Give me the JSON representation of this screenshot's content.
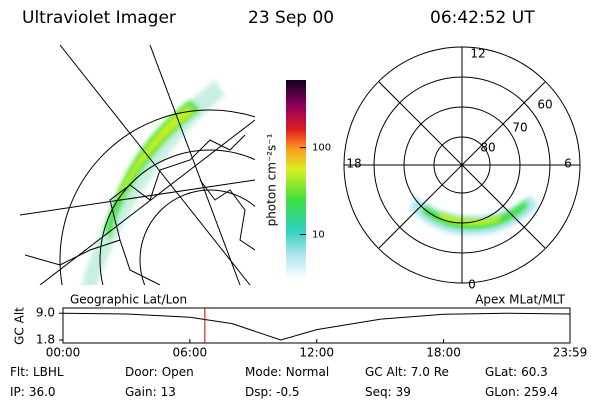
{
  "header": {
    "title": "Ultraviolet Imager",
    "date": "23 Sep 00",
    "time": "06:42:52 UT"
  },
  "map": {
    "label": "Geographic Lat/Lon"
  },
  "colorbar": {
    "label": "photon cm⁻²s⁻¹",
    "scale": "log",
    "lim": [
      3,
      600
    ],
    "ticks": [
      10,
      100
    ]
  },
  "polar": {
    "label": "Apex MLat/MLT",
    "mlt": [
      "12",
      "18",
      "6",
      "0"
    ],
    "mlat": [
      "60",
      "70",
      "80"
    ]
  },
  "altitude": {
    "ylabel": "GC Alt",
    "ylim": [
      1.0,
      10.4
    ],
    "yticks": [
      1.8,
      {
        "value": 9,
        "label": "9.0"
      }
    ],
    "xlim": [
      0,
      23.98
    ],
    "xticks": [
      {
        "value": 0,
        "label": "00:00"
      },
      {
        "value": 6,
        "label": "06:00"
      },
      {
        "value": 12,
        "label": "12:00"
      },
      {
        "value": 18,
        "label": "18:00"
      },
      {
        "value": 23.98,
        "label": "23:59"
      }
    ],
    "x": [
      0,
      3,
      6,
      8,
      10.3,
      12,
      15,
      18,
      21,
      23.98
    ],
    "values": [
      9.0,
      8.8,
      7.9,
      6.2,
      1.8,
      4.6,
      7.4,
      8.7,
      9.0,
      8.8
    ],
    "marker": 6.71,
    "marker_color": "#c00000"
  },
  "info": [
    [
      "Flt:",
      "LBHL"
    ],
    [
      "IP:",
      "36.0"
    ],
    [
      "Door:",
      "Open"
    ],
    [
      "Gain:",
      "13"
    ],
    [
      "Mode:",
      "Normal"
    ],
    [
      "Dsp:",
      "-0.5"
    ],
    [
      "GC Alt:",
      "7.0 Re"
    ],
    [
      "Seq:",
      "39"
    ],
    [
      "GLat:",
      "60.3"
    ],
    [
      "GLon:",
      "259.4"
    ]
  ]
}
